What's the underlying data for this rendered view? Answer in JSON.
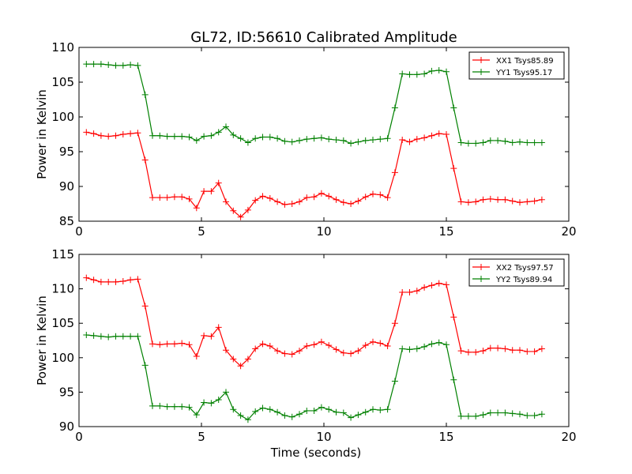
{
  "figure": {
    "title": "GL72, ID:56610 Calibrated Amplitude"
  },
  "chart_data": [
    {
      "type": "line",
      "title": "GL72, ID:56610 Calibrated Amplitude",
      "xlabel": "",
      "ylabel": "Power in Kelvin",
      "xlim": [
        0,
        20
      ],
      "ylim": [
        85,
        110
      ],
      "xticks": [
        0,
        5,
        10,
        15,
        20
      ],
      "yticks": [
        85,
        90,
        95,
        100,
        105,
        110
      ],
      "grid": false,
      "legend_position": "top-right",
      "x": [
        0.3,
        0.6,
        0.9,
        1.2,
        1.5,
        1.8,
        2.1,
        2.4,
        2.7,
        3.0,
        3.3,
        3.6,
        3.9,
        4.2,
        4.5,
        4.8,
        5.1,
        5.4,
        5.7,
        6.0,
        6.3,
        6.6,
        6.9,
        7.2,
        7.5,
        7.8,
        8.1,
        8.4,
        8.7,
        9.0,
        9.3,
        9.6,
        9.9,
        10.2,
        10.5,
        10.8,
        11.1,
        11.4,
        11.7,
        12.0,
        12.3,
        12.6,
        12.9,
        13.2,
        13.5,
        13.8,
        14.1,
        14.4,
        14.7,
        15.0,
        15.3,
        15.6,
        15.9,
        16.2,
        16.5,
        16.8,
        17.1,
        17.4,
        17.7,
        18.0,
        18.3,
        18.6,
        18.9
      ],
      "series": [
        {
          "name": "XX1 Tsys85.89",
          "color": "#ff0000",
          "values": [
            97.8,
            97.6,
            97.3,
            97.2,
            97.3,
            97.5,
            97.6,
            97.7,
            93.8,
            88.4,
            88.4,
            88.4,
            88.5,
            88.5,
            88.2,
            86.9,
            89.3,
            89.3,
            90.5,
            87.8,
            86.5,
            85.6,
            86.6,
            88.0,
            88.6,
            88.3,
            87.8,
            87.4,
            87.5,
            87.8,
            88.4,
            88.5,
            89.0,
            88.6,
            88.1,
            87.7,
            87.5,
            87.9,
            88.5,
            88.9,
            88.8,
            88.4,
            92.0,
            96.7,
            96.4,
            96.8,
            97.0,
            97.3,
            97.6,
            97.5,
            92.6,
            87.8,
            87.7,
            87.8,
            88.1,
            88.2,
            88.1,
            88.1,
            87.9,
            87.7,
            87.8,
            87.9,
            88.1
          ]
        },
        {
          "name": "YY1 Tsys95.17",
          "color": "#008000",
          "values": [
            107.6,
            107.6,
            107.6,
            107.5,
            107.4,
            107.4,
            107.5,
            107.4,
            103.2,
            97.3,
            97.3,
            97.2,
            97.2,
            97.2,
            97.1,
            96.6,
            97.2,
            97.3,
            97.8,
            98.6,
            97.4,
            96.9,
            96.3,
            96.9,
            97.1,
            97.1,
            96.9,
            96.5,
            96.4,
            96.6,
            96.8,
            96.9,
            97.0,
            96.8,
            96.7,
            96.6,
            96.2,
            96.4,
            96.6,
            96.7,
            96.8,
            96.9,
            101.3,
            106.2,
            106.1,
            106.1,
            106.2,
            106.6,
            106.7,
            106.5,
            101.3,
            96.3,
            96.2,
            96.2,
            96.3,
            96.6,
            96.6,
            96.5,
            96.3,
            96.4,
            96.3,
            96.3,
            96.3
          ]
        }
      ]
    },
    {
      "type": "line",
      "title": "",
      "xlabel": "Time (seconds)",
      "ylabel": "Power in Kelvin",
      "xlim": [
        0,
        20
      ],
      "ylim": [
        90,
        115
      ],
      "xticks": [
        0,
        5,
        10,
        15,
        20
      ],
      "yticks": [
        90,
        95,
        100,
        105,
        110,
        115
      ],
      "grid": false,
      "legend_position": "top-right",
      "x": [
        0.3,
        0.6,
        0.9,
        1.2,
        1.5,
        1.8,
        2.1,
        2.4,
        2.7,
        3.0,
        3.3,
        3.6,
        3.9,
        4.2,
        4.5,
        4.8,
        5.1,
        5.4,
        5.7,
        6.0,
        6.3,
        6.6,
        6.9,
        7.2,
        7.5,
        7.8,
        8.1,
        8.4,
        8.7,
        9.0,
        9.3,
        9.6,
        9.9,
        10.2,
        10.5,
        10.8,
        11.1,
        11.4,
        11.7,
        12.0,
        12.3,
        12.6,
        12.9,
        13.2,
        13.5,
        13.8,
        14.1,
        14.4,
        14.7,
        15.0,
        15.3,
        15.6,
        15.9,
        16.2,
        16.5,
        16.8,
        17.1,
        17.4,
        17.7,
        18.0,
        18.3,
        18.6,
        18.9
      ],
      "series": [
        {
          "name": "XX2 Tsys97.57",
          "color": "#ff0000",
          "values": [
            111.6,
            111.3,
            111.0,
            111.0,
            111.0,
            111.1,
            111.3,
            111.4,
            107.5,
            102.0,
            101.9,
            102.0,
            102.0,
            102.1,
            101.9,
            100.2,
            103.2,
            103.1,
            104.4,
            101.1,
            99.8,
            98.8,
            99.8,
            101.3,
            102.0,
            101.7,
            101.0,
            100.6,
            100.5,
            101.0,
            101.7,
            101.9,
            102.3,
            101.8,
            101.2,
            100.7,
            100.6,
            101.0,
            101.8,
            102.3,
            102.1,
            101.7,
            105.0,
            109.5,
            109.5,
            109.7,
            110.2,
            110.5,
            110.8,
            110.6,
            105.9,
            101.0,
            100.8,
            100.8,
            101.0,
            101.4,
            101.4,
            101.3,
            101.1,
            101.1,
            100.9,
            100.9,
            101.3
          ]
        },
        {
          "name": "YY2 Tsys89.94",
          "color": "#008000",
          "values": [
            103.3,
            103.2,
            103.1,
            103.0,
            103.1,
            103.1,
            103.1,
            103.1,
            98.9,
            93.0,
            93.0,
            92.9,
            92.9,
            92.9,
            92.8,
            91.7,
            93.5,
            93.4,
            93.9,
            95.0,
            92.5,
            91.6,
            91.0,
            92.2,
            92.7,
            92.5,
            92.1,
            91.6,
            91.4,
            91.8,
            92.3,
            92.3,
            92.8,
            92.5,
            92.1,
            92.0,
            91.3,
            91.7,
            92.1,
            92.5,
            92.4,
            92.5,
            96.6,
            101.3,
            101.2,
            101.3,
            101.6,
            102.0,
            102.2,
            101.9,
            96.8,
            91.5,
            91.5,
            91.5,
            91.7,
            92.0,
            92.0,
            92.0,
            91.9,
            91.8,
            91.6,
            91.6,
            91.8
          ]
        }
      ]
    }
  ]
}
